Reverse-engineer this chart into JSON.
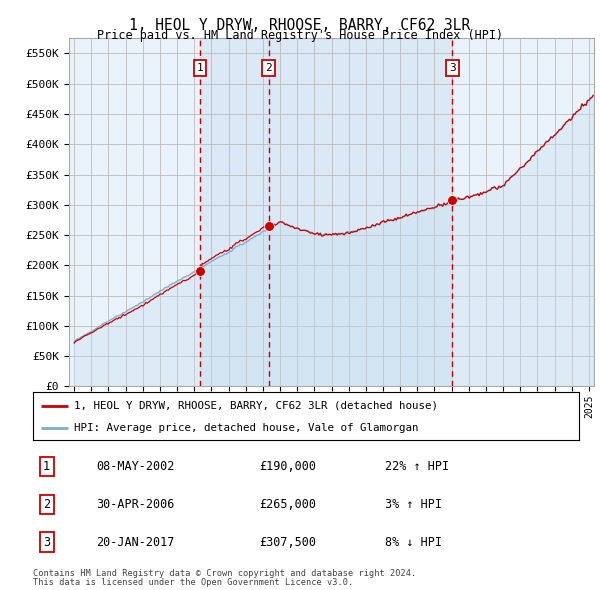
{
  "title": "1, HEOL Y DRYW, RHOOSE, BARRY, CF62 3LR",
  "subtitle": "Price paid vs. HM Land Registry's House Price Index (HPI)",
  "yticks": [
    0,
    50000,
    100000,
    150000,
    200000,
    250000,
    300000,
    350000,
    400000,
    450000,
    500000,
    550000
  ],
  "ylim": [
    0,
    575000
  ],
  "xlim_start": 1994.7,
  "xlim_end": 2025.3,
  "sale_dates": [
    2002.35,
    2006.33,
    2017.05
  ],
  "sale_prices": [
    190000,
    265000,
    307500
  ],
  "sale_labels": [
    "1",
    "2",
    "3"
  ],
  "sale_pct": [
    "22% ↑ HPI",
    "3% ↑ HPI",
    "8% ↓ HPI"
  ],
  "sale_date_str": [
    "08-MAY-2002",
    "30-APR-2006",
    "20-JAN-2017"
  ],
  "hpi_color": "#7aadd4",
  "hpi_fill_color": "#c5ddf0",
  "sale_color": "#cc0000",
  "sale_dot_color": "#cc0000",
  "background_color": "#ffffff",
  "plot_bg_color": "#eaf3fb",
  "grid_color": "#bbbbbb",
  "legend_label_sale": "1, HEOL Y DRYW, RHOOSE, BARRY, CF62 3LR (detached house)",
  "legend_label_hpi": "HPI: Average price, detached house, Vale of Glamorgan",
  "footer_line1": "Contains HM Land Registry data © Crown copyright and database right 2024.",
  "footer_line2": "This data is licensed under the Open Government Licence v3.0.",
  "vline_color": "#cc0000",
  "label_box_color": "#cc0000",
  "shade_between_sales": true
}
